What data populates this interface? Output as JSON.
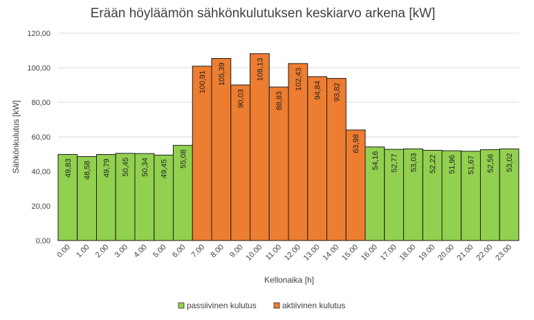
{
  "chart_data": {
    "type": "bar",
    "title": "Erään höyläämön sähkönkulutuksen keskiarvo arkena [kW]",
    "xlabel": "Kellonaika [h]",
    "ylabel": "Sähkönkulutus [kW]",
    "ylim": [
      0,
      120
    ],
    "yticks": [
      "0,00",
      "20,00",
      "40,00",
      "60,00",
      "80,00",
      "100,00",
      "120,00"
    ],
    "grid": true,
    "legend_position": "bottom",
    "categories": [
      "0.00",
      "1.00",
      "2.00",
      "3.00",
      "4.00",
      "5.00",
      "6.00",
      "7.00",
      "8.00",
      "9.00",
      "10.00",
      "11.00",
      "12.00",
      "13.00",
      "14.00",
      "15.00",
      "16.00",
      "17.00",
      "18.00",
      "19.00",
      "20.00",
      "21.00",
      "22.00",
      "23.00"
    ],
    "values": [
      49.83,
      48.58,
      49.79,
      50.45,
      50.34,
      49.45,
      55.08,
      100.91,
      105.39,
      90.03,
      108.13,
      88.83,
      102.43,
      94.84,
      93.82,
      63.98,
      54.16,
      52.77,
      53.03,
      52.22,
      51.96,
      51.67,
      52.56,
      53.02
    ],
    "value_labels": [
      "49,83",
      "48,58",
      "49,79",
      "50,45",
      "50,34",
      "49,45",
      "55,08",
      "100,91",
      "105,39",
      "90,03",
      "108,13",
      "88,83",
      "102,43",
      "94,84",
      "93,82",
      "63,98",
      "54,16",
      "52,77",
      "53,03",
      "52,22",
      "51,96",
      "51,67",
      "52,56",
      "53,02"
    ],
    "series_index": [
      0,
      0,
      0,
      0,
      0,
      0,
      0,
      1,
      1,
      1,
      1,
      1,
      1,
      1,
      1,
      1,
      0,
      0,
      0,
      0,
      0,
      0,
      0,
      0
    ],
    "series": [
      {
        "name": "passiivinen kulutus",
        "color": "#92d050"
      },
      {
        "name": "aktiivinen kulutus",
        "color": "#ed7d31"
      }
    ]
  }
}
